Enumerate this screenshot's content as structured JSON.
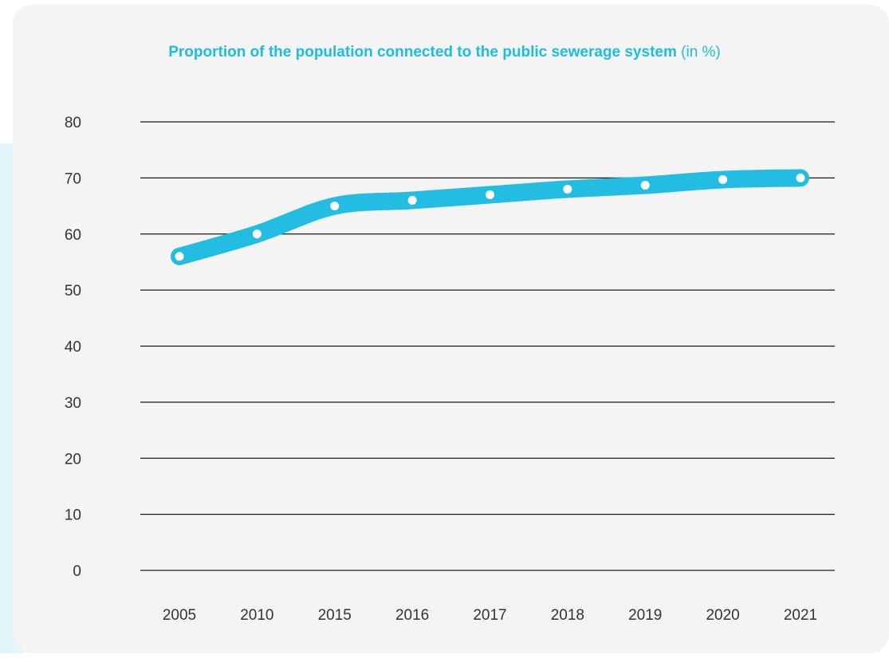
{
  "chart_data": {
    "type": "line",
    "title_bold": "Proportion of the population connected to the public sewerage system",
    "title_light": "(in %)",
    "x": [
      "2005",
      "2010",
      "2015",
      "2016",
      "2017",
      "2018",
      "2019",
      "2020",
      "2021"
    ],
    "series": [
      {
        "values": [
          56,
          60,
          65,
          66,
          67,
          68,
          68.7,
          69.7,
          70
        ]
      }
    ],
    "yticks": [
      "0",
      "10",
      "20",
      "30",
      "40",
      "50",
      "60",
      "70",
      "80"
    ],
    "ylim": [
      0,
      80
    ],
    "grid": true,
    "legend": "none",
    "colors": {
      "line": "#23bde3",
      "marker": "#ffffff",
      "gridline": "#1a1a1a",
      "title": "#1bbde0",
      "card_bg": "#f4f4f4",
      "side_panel": "#e3f4fb"
    }
  }
}
